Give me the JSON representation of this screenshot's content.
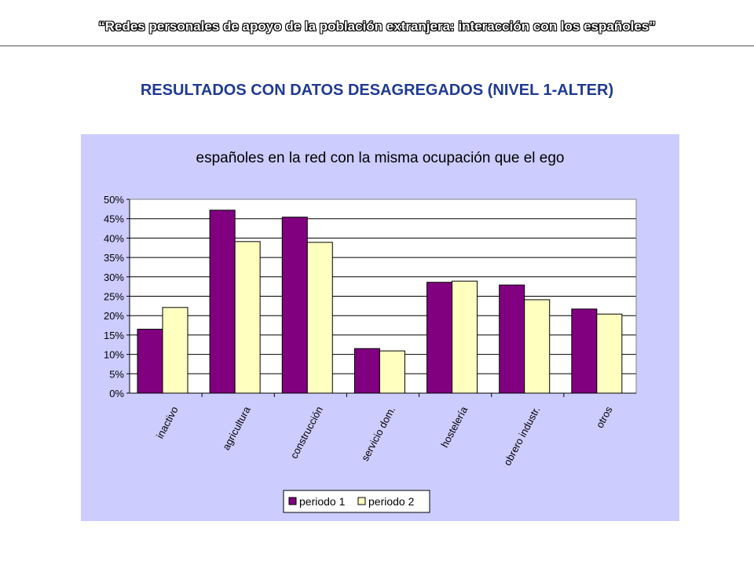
{
  "header": {
    "title": "“Redes personales de apoyo de la población extranjera: interacción con los españoles”"
  },
  "section": {
    "title": "RESULTADOS CON DATOS DESAGREGADOS (NIVEL 1-ALTER)",
    "color": "#1F3A93"
  },
  "chart_data": {
    "type": "bar",
    "title": "españoles en la red con la misma ocupación que el ego",
    "categories": [
      "inactivo",
      "agricultura",
      "construcción",
      "servicio dom.",
      "hostelería",
      "obrero industr.",
      "otros"
    ],
    "series": [
      {
        "name": "periodo 1",
        "color": "#800080",
        "values": [
          16.5,
          47.2,
          45.4,
          11.5,
          28.6,
          27.9,
          21.7
        ]
      },
      {
        "name": "periodo 2",
        "color": "#FFFFC0",
        "values": [
          22.1,
          39.1,
          38.9,
          10.9,
          28.9,
          24.1,
          20.4
        ]
      }
    ],
    "y_tick_labels": [
      "0%",
      "5%",
      "10%",
      "15%",
      "20%",
      "25%",
      "30%",
      "35%",
      "40%",
      "45%",
      "50%"
    ],
    "ylim": [
      0,
      50
    ],
    "y_unit": "%",
    "grid": true,
    "legend_position": "bottom",
    "background_color": "#CCCCFF",
    "plot_background_color": "#FFFFFF"
  }
}
